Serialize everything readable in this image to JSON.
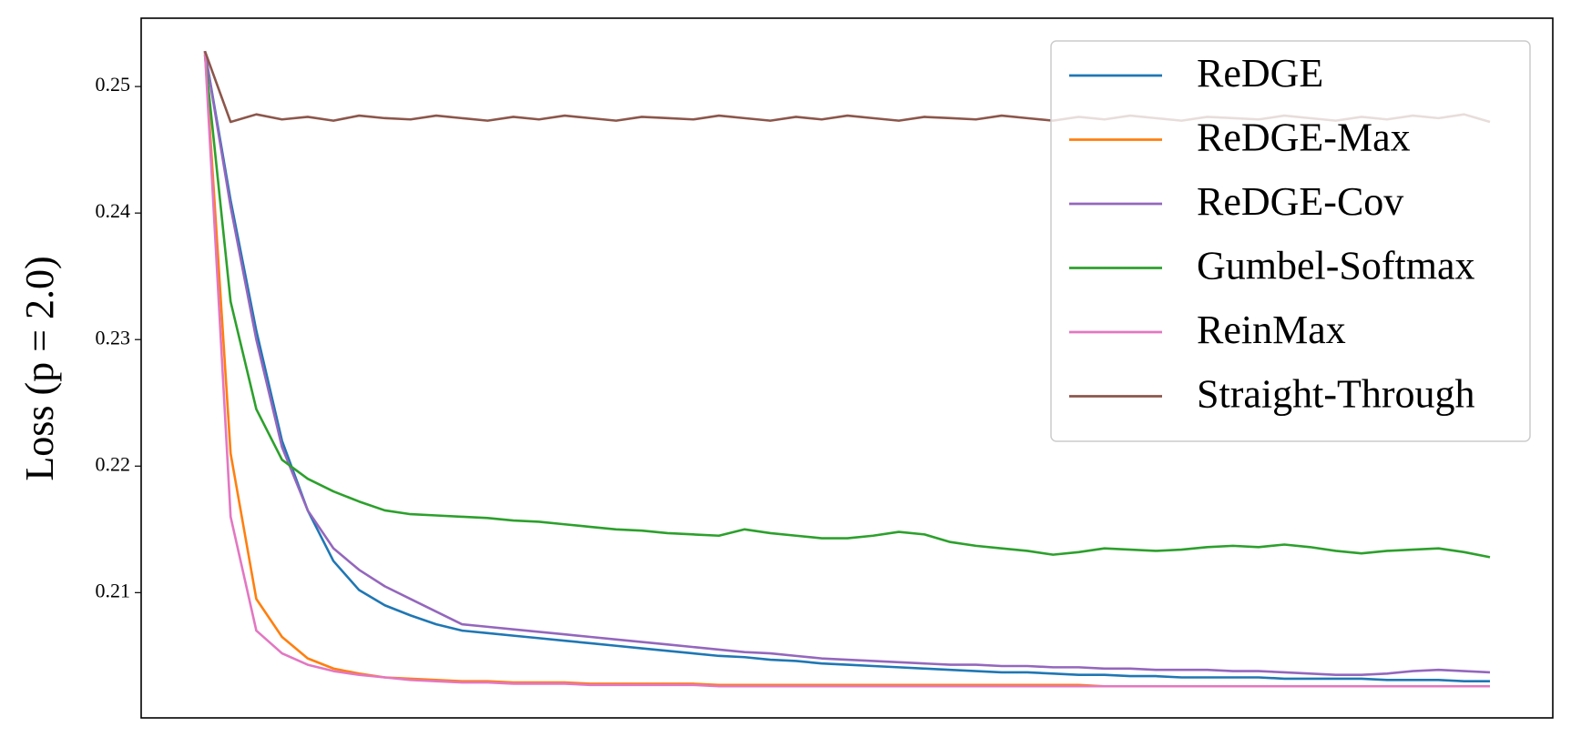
{
  "chart_data": {
    "type": "line",
    "y_label": "Loss (p = 2.0)",
    "ylim": [
      0.2001,
      0.2554
    ],
    "yticks": [
      0.21,
      0.22,
      0.23,
      0.24,
      0.25
    ],
    "legend": "upper right",
    "series": [
      {
        "name": "ReDGE",
        "color": "#1f77b4",
        "values": [
          0.2528,
          0.241,
          0.2307,
          0.222,
          0.2165,
          0.2125,
          0.2102,
          0.209,
          0.2082,
          0.2075,
          0.207,
          0.2068,
          0.2066,
          0.2064,
          0.2062,
          0.206,
          0.2058,
          0.2056,
          0.2054,
          0.2052,
          0.205,
          0.2049,
          0.2047,
          0.2046,
          0.2044,
          0.2043,
          0.2042,
          0.2041,
          0.204,
          0.2039,
          0.2038,
          0.2037,
          0.2037,
          0.2036,
          0.2035,
          0.2035,
          0.2034,
          0.2034,
          0.2033,
          0.2033,
          0.2033,
          0.2033,
          0.2032,
          0.2032,
          0.2032,
          0.2032,
          0.2031,
          0.2031,
          0.2031,
          0.203,
          0.203
        ]
      },
      {
        "name": "ReDGE-Max",
        "color": "#ff7f0e",
        "values": [
          0.2528,
          0.221,
          0.2095,
          0.2065,
          0.2048,
          0.204,
          0.2036,
          0.2033,
          0.2032,
          0.2031,
          0.203,
          0.203,
          0.2029,
          0.2029,
          0.2029,
          0.2028,
          0.2028,
          0.2028,
          0.2028,
          0.2028,
          0.2027,
          0.2027,
          0.2027,
          0.2027,
          0.2027,
          0.2027,
          0.2027,
          0.2027,
          0.2027,
          0.2027,
          0.2027,
          0.2027,
          0.2027,
          0.2027,
          0.2027,
          0.2026,
          0.2026,
          0.2026,
          0.2026,
          0.2026,
          0.2026,
          0.2026,
          0.2026,
          0.2026,
          0.2026,
          0.2026,
          0.2026,
          0.2026,
          0.2026,
          0.2026,
          0.2026
        ]
      },
      {
        "name": "ReDGE-Cov",
        "color": "#9467bd",
        "values": [
          0.2528,
          0.2405,
          0.23,
          0.2215,
          0.2165,
          0.2135,
          0.2118,
          0.2105,
          0.2095,
          0.2085,
          0.2075,
          0.2073,
          0.2071,
          0.2069,
          0.2067,
          0.2065,
          0.2063,
          0.2061,
          0.2059,
          0.2057,
          0.2055,
          0.2053,
          0.2052,
          0.205,
          0.2048,
          0.2047,
          0.2046,
          0.2045,
          0.2044,
          0.2043,
          0.2043,
          0.2042,
          0.2042,
          0.2041,
          0.2041,
          0.204,
          0.204,
          0.2039,
          0.2039,
          0.2039,
          0.2038,
          0.2038,
          0.2037,
          0.2036,
          0.2035,
          0.2035,
          0.2036,
          0.2038,
          0.2039,
          0.2038,
          0.2037
        ]
      },
      {
        "name": "Gumbel-Softmax",
        "color": "#2ca02c",
        "values": [
          0.2525,
          0.233,
          0.2245,
          0.2205,
          0.219,
          0.218,
          0.2172,
          0.2165,
          0.2162,
          0.2161,
          0.216,
          0.2159,
          0.2157,
          0.2156,
          0.2154,
          0.2152,
          0.215,
          0.2149,
          0.2147,
          0.2146,
          0.2145,
          0.215,
          0.2147,
          0.2145,
          0.2143,
          0.2143,
          0.2145,
          0.2148,
          0.2146,
          0.214,
          0.2137,
          0.2135,
          0.2133,
          0.213,
          0.2132,
          0.2135,
          0.2134,
          0.2133,
          0.2134,
          0.2136,
          0.2137,
          0.2136,
          0.2138,
          0.2136,
          0.2133,
          0.2131,
          0.2133,
          0.2134,
          0.2135,
          0.2132,
          0.2128
        ]
      },
      {
        "name": "ReinMax",
        "color": "#e377c2",
        "values": [
          0.2528,
          0.216,
          0.207,
          0.2052,
          0.2043,
          0.2038,
          0.2035,
          0.2033,
          0.2031,
          0.203,
          0.2029,
          0.2029,
          0.2028,
          0.2028,
          0.2028,
          0.2027,
          0.2027,
          0.2027,
          0.2027,
          0.2027,
          0.2026,
          0.2026,
          0.2026,
          0.2026,
          0.2026,
          0.2026,
          0.2026,
          0.2026,
          0.2026,
          0.2026,
          0.2026,
          0.2026,
          0.2026,
          0.2026,
          0.2026,
          0.2026,
          0.2026,
          0.2026,
          0.2026,
          0.2026,
          0.2026,
          0.2026,
          0.2026,
          0.2026,
          0.2026,
          0.2026,
          0.2026,
          0.2026,
          0.2026,
          0.2026,
          0.2026
        ]
      },
      {
        "name": "Straight-Through",
        "color": "#8c564b",
        "values": [
          0.2528,
          0.2472,
          0.2478,
          0.2474,
          0.2476,
          0.2473,
          0.2477,
          0.2475,
          0.2474,
          0.2477,
          0.2475,
          0.2473,
          0.2476,
          0.2474,
          0.2477,
          0.2475,
          0.2473,
          0.2476,
          0.2475,
          0.2474,
          0.2477,
          0.2475,
          0.2473,
          0.2476,
          0.2474,
          0.2477,
          0.2475,
          0.2473,
          0.2476,
          0.2475,
          0.2474,
          0.2477,
          0.2475,
          0.2473,
          0.2476,
          0.2474,
          0.2477,
          0.2475,
          0.2473,
          0.2476,
          0.2475,
          0.2474,
          0.2477,
          0.2475,
          0.2473,
          0.2476,
          0.2474,
          0.2477,
          0.2475,
          0.2478,
          0.2472
        ]
      }
    ]
  }
}
